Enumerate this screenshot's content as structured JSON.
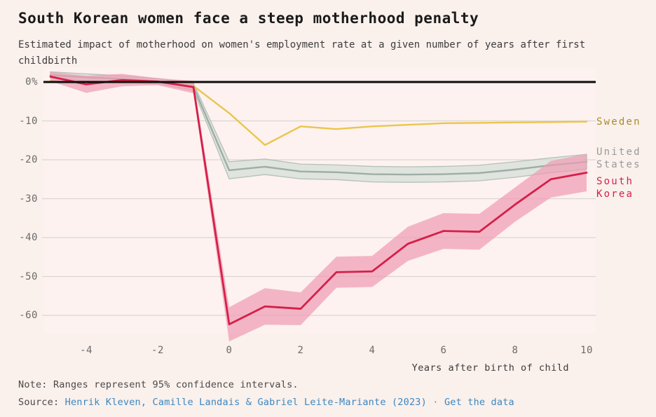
{
  "header": {
    "title": "South Korean women face a steep motherhood penalty",
    "subtitle": "Estimated impact of motherhood on women's employment rate at a given number of years after first childbirth"
  },
  "chart_data": {
    "type": "line",
    "title": "South Korean women face a steep motherhood penalty",
    "subtitle": "Estimated impact of motherhood on women's employment rate at a given number of years after first childbirth",
    "xlabel": "Years after birth of child",
    "ylabel": "",
    "x": [
      -5,
      -4,
      -3,
      -2,
      -1,
      0,
      1,
      2,
      3,
      4,
      5,
      6,
      7,
      8,
      9,
      10
    ],
    "xlim": [
      -5,
      10
    ],
    "ylim": [
      -68,
      4
    ],
    "grid": "horizontal",
    "legend_position": "right-of-line-ends",
    "x_ticks": [
      {
        "label": "-4",
        "value": -4
      },
      {
        "label": "-2",
        "value": -2
      },
      {
        "label": "0",
        "value": 0
      },
      {
        "label": "2",
        "value": 2
      },
      {
        "label": "4",
        "value": 4
      },
      {
        "label": "6",
        "value": 6
      },
      {
        "label": "8",
        "value": 8
      },
      {
        "label": "10",
        "value": 10
      }
    ],
    "y_ticks": [
      {
        "label": "0%",
        "value": 0
      },
      {
        "label": "-10",
        "value": -10
      },
      {
        "label": "-20",
        "value": -20
      },
      {
        "label": "-30",
        "value": -30
      },
      {
        "label": "-40",
        "value": -40
      },
      {
        "label": "-50",
        "value": -50
      },
      {
        "label": "-60",
        "value": -60
      }
    ],
    "series": [
      {
        "name": "United States",
        "label": "United\nStates",
        "line_color": "#9fada7",
        "band_color": "#d3ded7",
        "band_edge_color": "#aebbb4",
        "label_color": "#9a9a9a",
        "values": [
          1.8,
          1.2,
          0.8,
          0.2,
          -1.2,
          -22.7,
          -21.8,
          -23.0,
          -23.2,
          -23.7,
          -23.8,
          -23.7,
          -23.4,
          -22.5,
          -21.4,
          -20.5
        ],
        "band_lower": [
          1.0,
          0.3,
          0.0,
          -0.5,
          -2.1,
          -24.9,
          -23.8,
          -24.9,
          -25.1,
          -25.7,
          -25.8,
          -25.7,
          -25.4,
          -24.5,
          -23.3,
          -22.4
        ],
        "band_upper": [
          2.6,
          2.1,
          1.6,
          0.9,
          -0.3,
          -20.5,
          -19.8,
          -21.1,
          -21.3,
          -21.7,
          -21.8,
          -21.7,
          -21.4,
          -20.5,
          -19.5,
          -18.6
        ]
      },
      {
        "name": "Sweden",
        "label": "Sweden",
        "line_color": "#eac54d",
        "band_color": null,
        "band_edge_color": null,
        "label_color": "#a88c2c",
        "values": [
          0.3,
          -0.5,
          0.3,
          0.1,
          -1.0,
          -8.0,
          -16.2,
          -11.4,
          -12.1,
          -11.4,
          -11.0,
          -10.6,
          -10.5,
          -10.4,
          -10.3,
          -10.2
        ],
        "band_lower": null,
        "band_upper": null
      },
      {
        "name": "South Korea",
        "label": "South\nKorea",
        "line_color": "#d61f49",
        "band_color": "#ef9db4",
        "band_edge_color": null,
        "label_color": "#d61f49",
        "values": [
          1.4,
          -0.6,
          0.5,
          0.1,
          -1.3,
          -62.3,
          -57.7,
          -58.3,
          -48.9,
          -48.7,
          -41.6,
          -38.3,
          -38.5,
          -31.5,
          -25.0,
          -23.3
        ],
        "band_lower": [
          0.2,
          -2.8,
          -1.1,
          -0.8,
          -2.9,
          -66.7,
          -62.4,
          -62.5,
          -52.9,
          -52.7,
          -46.0,
          -42.9,
          -43.1,
          -35.9,
          -29.7,
          -28.1
        ],
        "band_upper": [
          2.6,
          1.6,
          2.1,
          1.0,
          0.3,
          -57.9,
          -53.0,
          -54.1,
          -44.9,
          -44.7,
          -37.2,
          -33.7,
          -33.9,
          -27.1,
          -20.3,
          -18.5
        ]
      }
    ],
    "zero_line_color": "#0d0d0d",
    "grid_color": "#dcd5d1",
    "plot_bg_color": "#fdf2ef"
  },
  "footer": {
    "note_prefix": "Note:",
    "note_text": "Ranges represent 95% confidence intervals.",
    "source_prefix": "Source:",
    "source_link": "Henrik Kleven, Camille Landais & Gabriel Leite-Mariante (2023)",
    "separator": "·",
    "data_link": "Get the data"
  }
}
